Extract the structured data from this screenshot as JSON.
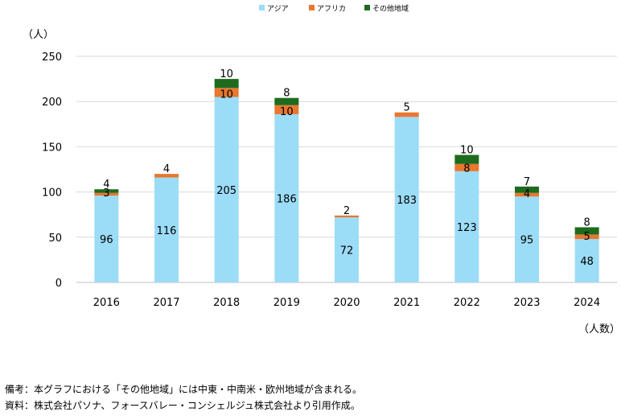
{
  "chart_data": {
    "type": "bar",
    "stacked": true,
    "categories": [
      "2016",
      "2017",
      "2018",
      "2019",
      "2020",
      "2021",
      "2022",
      "2023",
      "2024"
    ],
    "series": [
      {
        "name": "アジア",
        "color": "#9bdcf7",
        "values": [
          96,
          116,
          205,
          186,
          72,
          183,
          123,
          95,
          48
        ]
      },
      {
        "name": "アフリカ",
        "color": "#e8772f",
        "values": [
          3,
          4,
          10,
          10,
          2,
          5,
          8,
          4,
          5
        ]
      },
      {
        "name": "その他地域",
        "color": "#1e6b1e",
        "values": [
          4,
          null,
          10,
          8,
          null,
          null,
          10,
          7,
          8
        ]
      }
    ],
    "ylabel": "（人）",
    "xlabel": "（人数）",
    "ylim": [
      0,
      250
    ],
    "yticks": [
      0,
      50,
      100,
      150,
      200,
      250
    ],
    "grid": true,
    "legend": "top-center"
  },
  "notes": {
    "remark": "備考：本グラフにおける「その他地域」には中東・中南米・欧州地域が含まれる。",
    "source": "資料：株式会社パソナ、フォースバレー・コンシェルジュ株式会社より引用作成。"
  }
}
